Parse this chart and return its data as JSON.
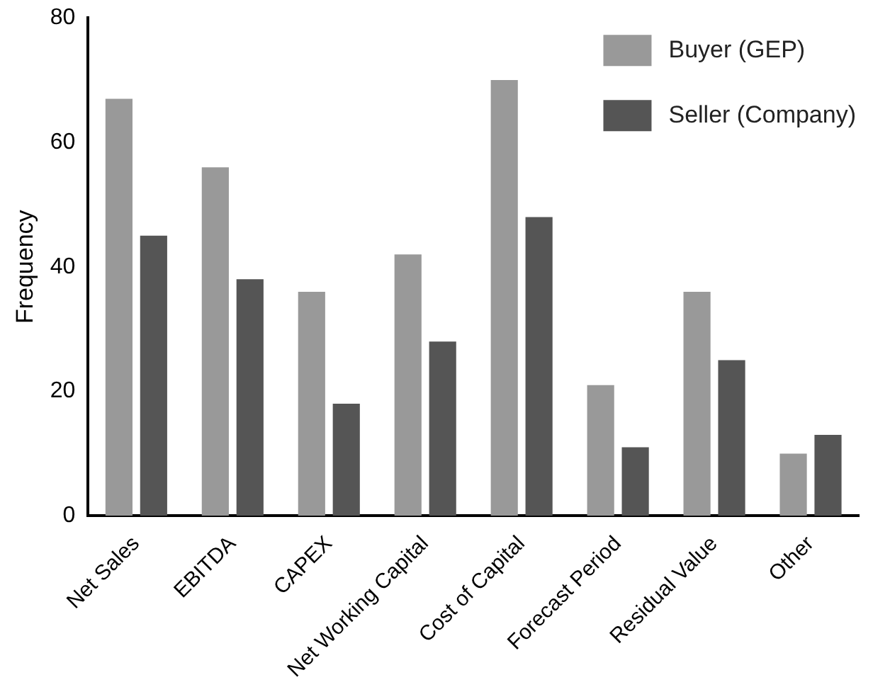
{
  "chart_data": {
    "type": "bar",
    "ylabel": "Frequency",
    "categories": [
      "Net Sales",
      "EBITDA",
      "CAPEX",
      "Net Working Capital",
      "Cost of Capital",
      "Forecast Period",
      "Residual Value",
      "Other"
    ],
    "series": [
      {
        "name": "Buyer (GEP)",
        "color": "#999999",
        "values": [
          67,
          56,
          36,
          42,
          70,
          21,
          36,
          10
        ]
      },
      {
        "name": "Seller (Company)",
        "color": "#555555",
        "values": [
          45,
          38,
          18,
          28,
          48,
          11,
          25,
          13
        ]
      }
    ],
    "ylim": [
      0,
      80
    ],
    "yticks": [
      0,
      20,
      40,
      60,
      80
    ],
    "grid": false,
    "legend": "top right"
  }
}
